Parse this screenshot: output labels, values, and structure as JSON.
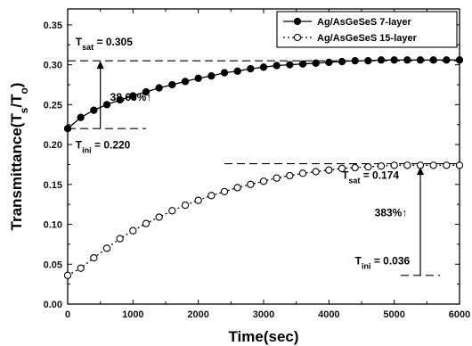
{
  "chart_data": {
    "type": "scatter",
    "xlabel": "Time(sec)",
    "ylabel": "Transmittance(T_s/T_o)",
    "xlim": [
      0,
      6000
    ],
    "ylim": [
      0.0,
      0.37
    ],
    "xticks": [
      0,
      1000,
      2000,
      3000,
      4000,
      5000,
      6000
    ],
    "yticks": [
      0.0,
      0.05,
      0.1,
      0.15,
      0.2,
      0.25,
      0.3,
      0.35
    ],
    "xtick_labels": [
      "0",
      "1000",
      "2000",
      "3000",
      "4000",
      "5000",
      "6000"
    ],
    "ytick_labels": [
      "0.00",
      "0.05",
      "0.10",
      "0.15",
      "0.20",
      "0.25",
      "0.30",
      "0.35"
    ],
    "legend_position": "top-right",
    "grid": false,
    "series": [
      {
        "name": "Ag/AsGeSeS 7-layer",
        "marker": "filled-circle",
        "line": "solid",
        "x": [
          0,
          200,
          400,
          600,
          800,
          1000,
          1200,
          1400,
          1600,
          1800,
          2000,
          2200,
          2400,
          2600,
          2800,
          3000,
          3200,
          3400,
          3600,
          3800,
          4000,
          4200,
          4400,
          4600,
          4800,
          5000,
          5200,
          5400,
          5600,
          5800,
          6000
        ],
        "y": [
          0.22,
          0.234,
          0.243,
          0.25,
          0.256,
          0.261,
          0.266,
          0.271,
          0.275,
          0.279,
          0.283,
          0.286,
          0.29,
          0.292,
          0.295,
          0.297,
          0.299,
          0.3,
          0.301,
          0.302,
          0.303,
          0.304,
          0.305,
          0.305,
          0.306,
          0.306,
          0.306,
          0.306,
          0.306,
          0.306,
          0.306
        ]
      },
      {
        "name": "Ag/AsGeSeS 15-layer",
        "marker": "open-circle",
        "line": "dotted",
        "x": [
          0,
          200,
          400,
          600,
          800,
          1000,
          1200,
          1400,
          1600,
          1800,
          2000,
          2200,
          2400,
          2600,
          2800,
          3000,
          3200,
          3400,
          3600,
          3800,
          4000,
          4200,
          4400,
          4600,
          4800,
          5000,
          5200,
          5400,
          5600,
          5800,
          6000
        ],
        "y": [
          0.036,
          0.045,
          0.058,
          0.07,
          0.082,
          0.092,
          0.101,
          0.109,
          0.117,
          0.124,
          0.13,
          0.136,
          0.141,
          0.146,
          0.15,
          0.154,
          0.158,
          0.161,
          0.164,
          0.166,
          0.168,
          0.17,
          0.171,
          0.172,
          0.173,
          0.174,
          0.174,
          0.174,
          0.174,
          0.174,
          0.174
        ]
      }
    ],
    "annotations": {
      "tsat_7": "T_sat = 0.305",
      "tini_7": "T_ini = 0.220",
      "increase_7": "38.63%↑",
      "tsat_15": "T_sat = 0.174",
      "tini_15": "T_ini = 0.036",
      "increase_15": "383%↑"
    }
  }
}
